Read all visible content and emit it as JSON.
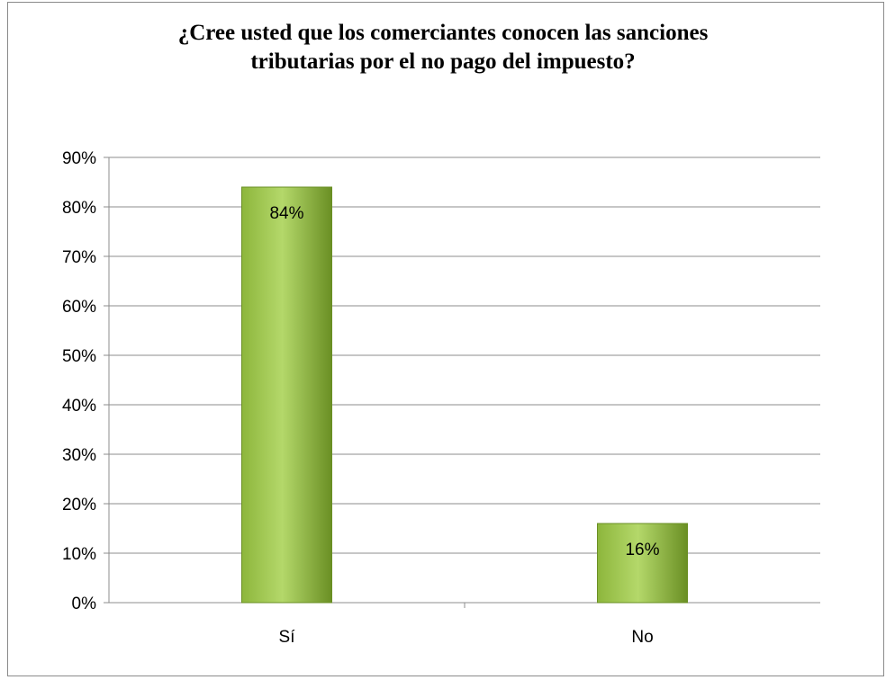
{
  "chart_data": {
    "type": "bar",
    "title_lines": [
      "¿Cree usted que los comerciantes conocen las sanciones",
      "tributarias por el no pago del impuesto?"
    ],
    "categories": [
      "Sí",
      "No"
    ],
    "values": [
      84,
      16
    ],
    "data_labels": [
      "84%",
      "16%"
    ],
    "ylim": [
      0,
      90
    ],
    "yticks": [
      0,
      10,
      20,
      30,
      40,
      50,
      60,
      70,
      80,
      90
    ],
    "ytick_labels": [
      "0%",
      "10%",
      "20%",
      "30%",
      "40%",
      "50%",
      "60%",
      "70%",
      "80%",
      "90%"
    ],
    "grid": true,
    "legend": "none",
    "bar_color": "#8db63c",
    "bar_color_light": "#b4d86a",
    "bar_color_dark": "#6a8f24"
  }
}
